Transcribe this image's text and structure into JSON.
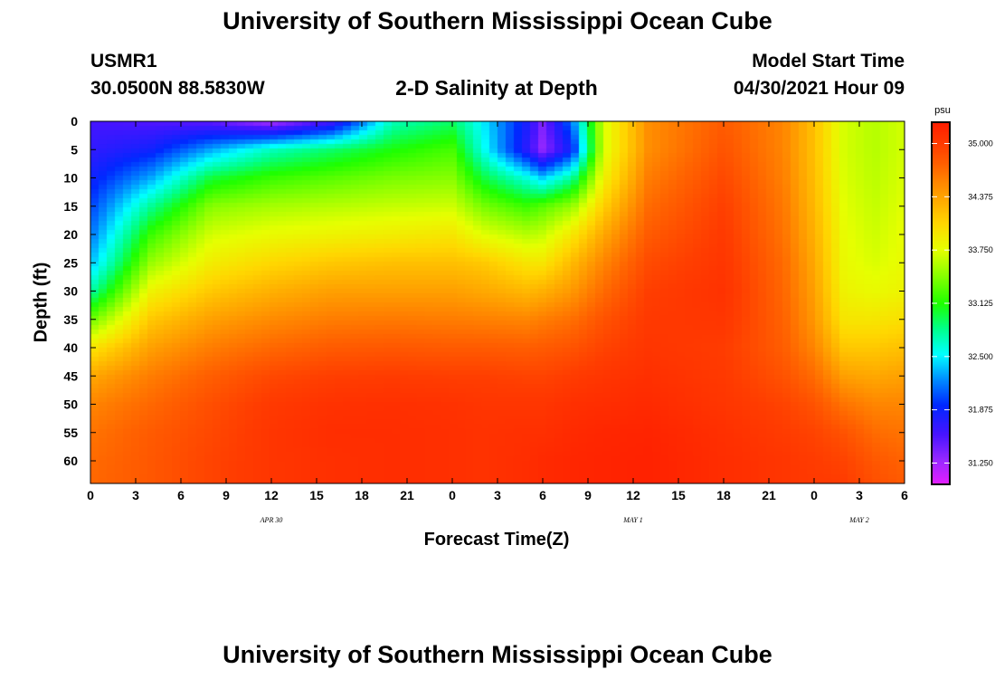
{
  "page": {
    "title_top": "University of Southern Mississippi Ocean Cube",
    "title_bottom": "University of Southern Mississippi Ocean Cube",
    "station_id": "USMR1",
    "station_coords": "30.0500N  88.5830W",
    "chart_title": "2-D Salinity at Depth",
    "model_label": "Model Start Time",
    "model_time": "04/30/2021 Hour 09"
  },
  "chart_data": {
    "type": "heatmap",
    "title": "2-D Salinity at Depth",
    "xlabel": "Forecast Time(Z)",
    "ylabel": "Depth (ft)",
    "x_tick_labels": [
      "0",
      "3",
      "6",
      "9",
      "12",
      "15",
      "18",
      "21",
      "0",
      "3",
      "6",
      "9",
      "12",
      "15",
      "18",
      "21",
      "0",
      "3",
      "6"
    ],
    "x_range_hours": [
      0,
      54
    ],
    "date_labels": [
      {
        "label": "APR 30",
        "hour": 12
      },
      {
        "label": "MAY 1",
        "hour": 36
      },
      {
        "label": "MAY 2",
        "hour": 51
      }
    ],
    "y_tick_labels": [
      "0",
      "5",
      "10",
      "15",
      "20",
      "25",
      "30",
      "35",
      "40",
      "45",
      "50",
      "55",
      "60"
    ],
    "y_range_ft": [
      0,
      64
    ],
    "colorbar": {
      "units": "psu",
      "range": [
        31.0,
        35.25
      ],
      "tick_labels": [
        "35.000",
        "34.375",
        "33.750",
        "33.125",
        "32.500",
        "31.875",
        "31.250"
      ]
    },
    "profiles": [
      {
        "hour": 0,
        "depth": [
          0,
          5,
          10,
          15,
          20,
          25,
          30,
          35,
          40,
          45,
          50,
          55,
          60,
          64
        ],
        "psu": [
          31.6,
          31.7,
          31.85,
          32.0,
          32.15,
          32.35,
          32.75,
          33.35,
          33.95,
          34.35,
          34.55,
          34.65,
          34.7,
          34.72
        ]
      },
      {
        "hour": 4,
        "depth": [
          0,
          5,
          10,
          15,
          20,
          25,
          30,
          35,
          40,
          45,
          50,
          55,
          60,
          64
        ],
        "psu": [
          31.55,
          31.85,
          32.3,
          32.8,
          33.2,
          33.5,
          33.85,
          34.15,
          34.4,
          34.6,
          34.72,
          34.8,
          34.82,
          34.82
        ]
      },
      {
        "hour": 8,
        "depth": [
          0,
          5,
          10,
          15,
          20,
          25,
          30,
          35,
          40,
          45,
          50,
          55,
          60,
          64
        ],
        "psu": [
          31.5,
          32.3,
          33.0,
          33.45,
          33.7,
          33.9,
          34.15,
          34.4,
          34.6,
          34.78,
          34.88,
          34.92,
          34.95,
          34.95
        ]
      },
      {
        "hour": 12,
        "depth": [
          0,
          5,
          10,
          15,
          20,
          25,
          30,
          35,
          40,
          45,
          50,
          55,
          60,
          64
        ],
        "psu": [
          31.2,
          32.7,
          33.2,
          33.55,
          33.8,
          34.05,
          34.3,
          34.52,
          34.72,
          34.92,
          35.02,
          35.05,
          35.05,
          35.05
        ]
      },
      {
        "hour": 16,
        "depth": [
          0,
          5,
          10,
          15,
          20,
          25,
          30,
          35,
          40,
          45,
          50,
          55,
          60,
          64
        ],
        "psu": [
          31.6,
          32.9,
          33.3,
          33.6,
          33.85,
          34.15,
          34.4,
          34.6,
          34.8,
          34.98,
          35.08,
          35.12,
          35.1,
          35.1
        ]
      },
      {
        "hour": 20,
        "depth": [
          0,
          5,
          10,
          15,
          20,
          25,
          30,
          35,
          40,
          45,
          50,
          55,
          60,
          64
        ],
        "psu": [
          32.7,
          33.1,
          33.4,
          33.65,
          33.9,
          34.2,
          34.4,
          34.62,
          34.82,
          35.0,
          35.1,
          35.12,
          35.12,
          35.12
        ]
      },
      {
        "hour": 24,
        "depth": [
          0,
          5,
          10,
          15,
          20,
          25,
          30,
          35,
          40,
          45,
          50,
          55,
          60,
          64
        ],
        "psu": [
          32.9,
          33.25,
          33.45,
          33.68,
          33.95,
          34.2,
          34.4,
          34.6,
          34.8,
          34.98,
          35.08,
          35.1,
          35.1,
          35.1
        ]
      },
      {
        "hour": 26,
        "depth": [
          0,
          5,
          10,
          15,
          20,
          25,
          30,
          35,
          40,
          45,
          50,
          55,
          60,
          64
        ],
        "psu": [
          32.5,
          32.6,
          33.0,
          33.4,
          33.75,
          34.15,
          34.35,
          34.58,
          34.8,
          34.98,
          35.05,
          35.08,
          35.08,
          35.08
        ]
      },
      {
        "hour": 29,
        "depth": [
          0,
          5,
          10,
          15,
          20,
          25,
          30,
          35,
          40,
          45,
          50,
          55,
          60,
          64
        ],
        "psu": [
          31.8,
          31.7,
          32.6,
          33.2,
          33.6,
          33.95,
          34.25,
          34.55,
          34.78,
          34.95,
          35.05,
          35.1,
          35.12,
          35.12
        ]
      },
      {
        "hour": 30,
        "depth": [
          0,
          5,
          10,
          15,
          20,
          25,
          30,
          35,
          40,
          45,
          50,
          55,
          60,
          64
        ],
        "psu": [
          31.4,
          31.3,
          32.4,
          33.3,
          33.65,
          33.95,
          34.3,
          34.6,
          34.8,
          34.95,
          35.05,
          35.1,
          35.15,
          35.15
        ]
      },
      {
        "hour": 32,
        "depth": [
          0,
          5,
          10,
          15,
          20,
          25,
          30,
          35,
          40,
          45,
          50,
          55,
          60,
          64
        ],
        "psu": [
          32.2,
          31.9,
          32.8,
          33.5,
          33.95,
          34.25,
          34.45,
          34.68,
          34.85,
          35.0,
          35.1,
          35.15,
          35.18,
          35.18
        ]
      },
      {
        "hour": 34,
        "depth": [
          0,
          5,
          10,
          15,
          20,
          25,
          30,
          35,
          40,
          45,
          50,
          55,
          60,
          64
        ],
        "psu": [
          33.7,
          33.7,
          33.85,
          34.1,
          34.35,
          34.55,
          34.7,
          34.85,
          34.95,
          35.05,
          35.12,
          35.18,
          35.2,
          35.2
        ]
      },
      {
        "hour": 37,
        "depth": [
          0,
          5,
          10,
          15,
          20,
          25,
          30,
          35,
          40,
          45,
          50,
          55,
          60,
          64
        ],
        "psu": [
          34.5,
          34.5,
          34.6,
          34.7,
          34.8,
          34.9,
          34.98,
          35.02,
          35.05,
          35.1,
          35.15,
          35.2,
          35.22,
          35.22
        ]
      },
      {
        "hour": 42,
        "depth": [
          0,
          5,
          10,
          15,
          20,
          25,
          30,
          35,
          40,
          45,
          50,
          55,
          60,
          64
        ],
        "psu": [
          34.8,
          34.85,
          34.92,
          34.98,
          35.02,
          35.05,
          35.08,
          35.05,
          35.0,
          35.02,
          35.05,
          35.1,
          35.12,
          35.12
        ]
      },
      {
        "hour": 46,
        "depth": [
          0,
          5,
          10,
          15,
          20,
          25,
          30,
          35,
          40,
          45,
          50,
          55,
          60,
          64
        ],
        "psu": [
          34.55,
          34.55,
          34.58,
          34.62,
          34.65,
          34.7,
          34.72,
          34.75,
          34.78,
          34.85,
          34.95,
          35.0,
          35.05,
          35.05
        ]
      },
      {
        "hour": 48,
        "depth": [
          0,
          5,
          10,
          15,
          20,
          25,
          30,
          35,
          40,
          45,
          50,
          55,
          60,
          64
        ],
        "psu": [
          34.2,
          34.2,
          34.22,
          34.25,
          34.3,
          34.35,
          34.4,
          34.45,
          34.55,
          34.7,
          34.85,
          34.95,
          35.0,
          35.02
        ]
      },
      {
        "hour": 50,
        "depth": [
          0,
          5,
          10,
          15,
          20,
          25,
          30,
          35,
          40,
          45,
          50,
          55,
          60,
          64
        ],
        "psu": [
          33.7,
          33.7,
          33.72,
          33.75,
          33.78,
          33.8,
          33.85,
          33.95,
          34.15,
          34.4,
          34.65,
          34.85,
          34.95,
          35.0
        ]
      },
      {
        "hour": 52,
        "depth": [
          0,
          5,
          10,
          15,
          20,
          25,
          30,
          35,
          40,
          45,
          50,
          55,
          60,
          64
        ],
        "psu": [
          33.6,
          33.6,
          33.62,
          33.65,
          33.68,
          33.72,
          33.8,
          33.95,
          34.15,
          34.35,
          34.55,
          34.7,
          34.82,
          34.88
        ]
      },
      {
        "hour": 54,
        "depth": [
          0,
          5,
          10,
          15,
          20,
          25,
          30,
          35,
          40,
          45,
          50,
          55,
          60,
          64
        ],
        "psu": [
          33.7,
          33.7,
          33.72,
          33.75,
          33.78,
          33.8,
          33.85,
          34.0,
          34.2,
          34.4,
          34.55,
          34.65,
          34.75,
          34.8
        ]
      }
    ]
  }
}
